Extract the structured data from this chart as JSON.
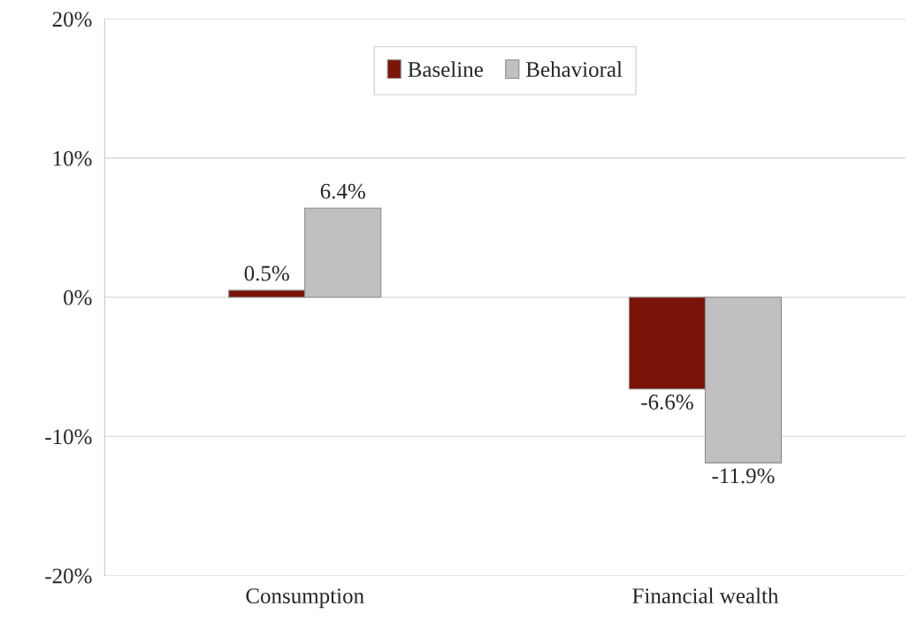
{
  "chart_data": {
    "type": "bar",
    "categories": [
      "Consumption",
      "Financial wealth"
    ],
    "series": [
      {
        "name": "Baseline",
        "color": "#7a1408",
        "values": [
          0.5,
          -6.6
        ],
        "value_labels": [
          "0.5%",
          "-6.6%"
        ]
      },
      {
        "name": "Behavioral",
        "color": "#c0c0c0",
        "values": [
          6.4,
          -11.9
        ],
        "value_labels": [
          "6.4%",
          "-11.9%"
        ]
      }
    ],
    "ylim": [
      -20,
      20
    ],
    "yticks": [
      {
        "value": -20,
        "label": "-20%"
      },
      {
        "value": -10,
        "label": "-10%"
      },
      {
        "value": 0,
        "label": "0%"
      },
      {
        "value": 10,
        "label": "10%"
      },
      {
        "value": 20,
        "label": "20%"
      }
    ],
    "grid": "y",
    "legend": "top"
  }
}
